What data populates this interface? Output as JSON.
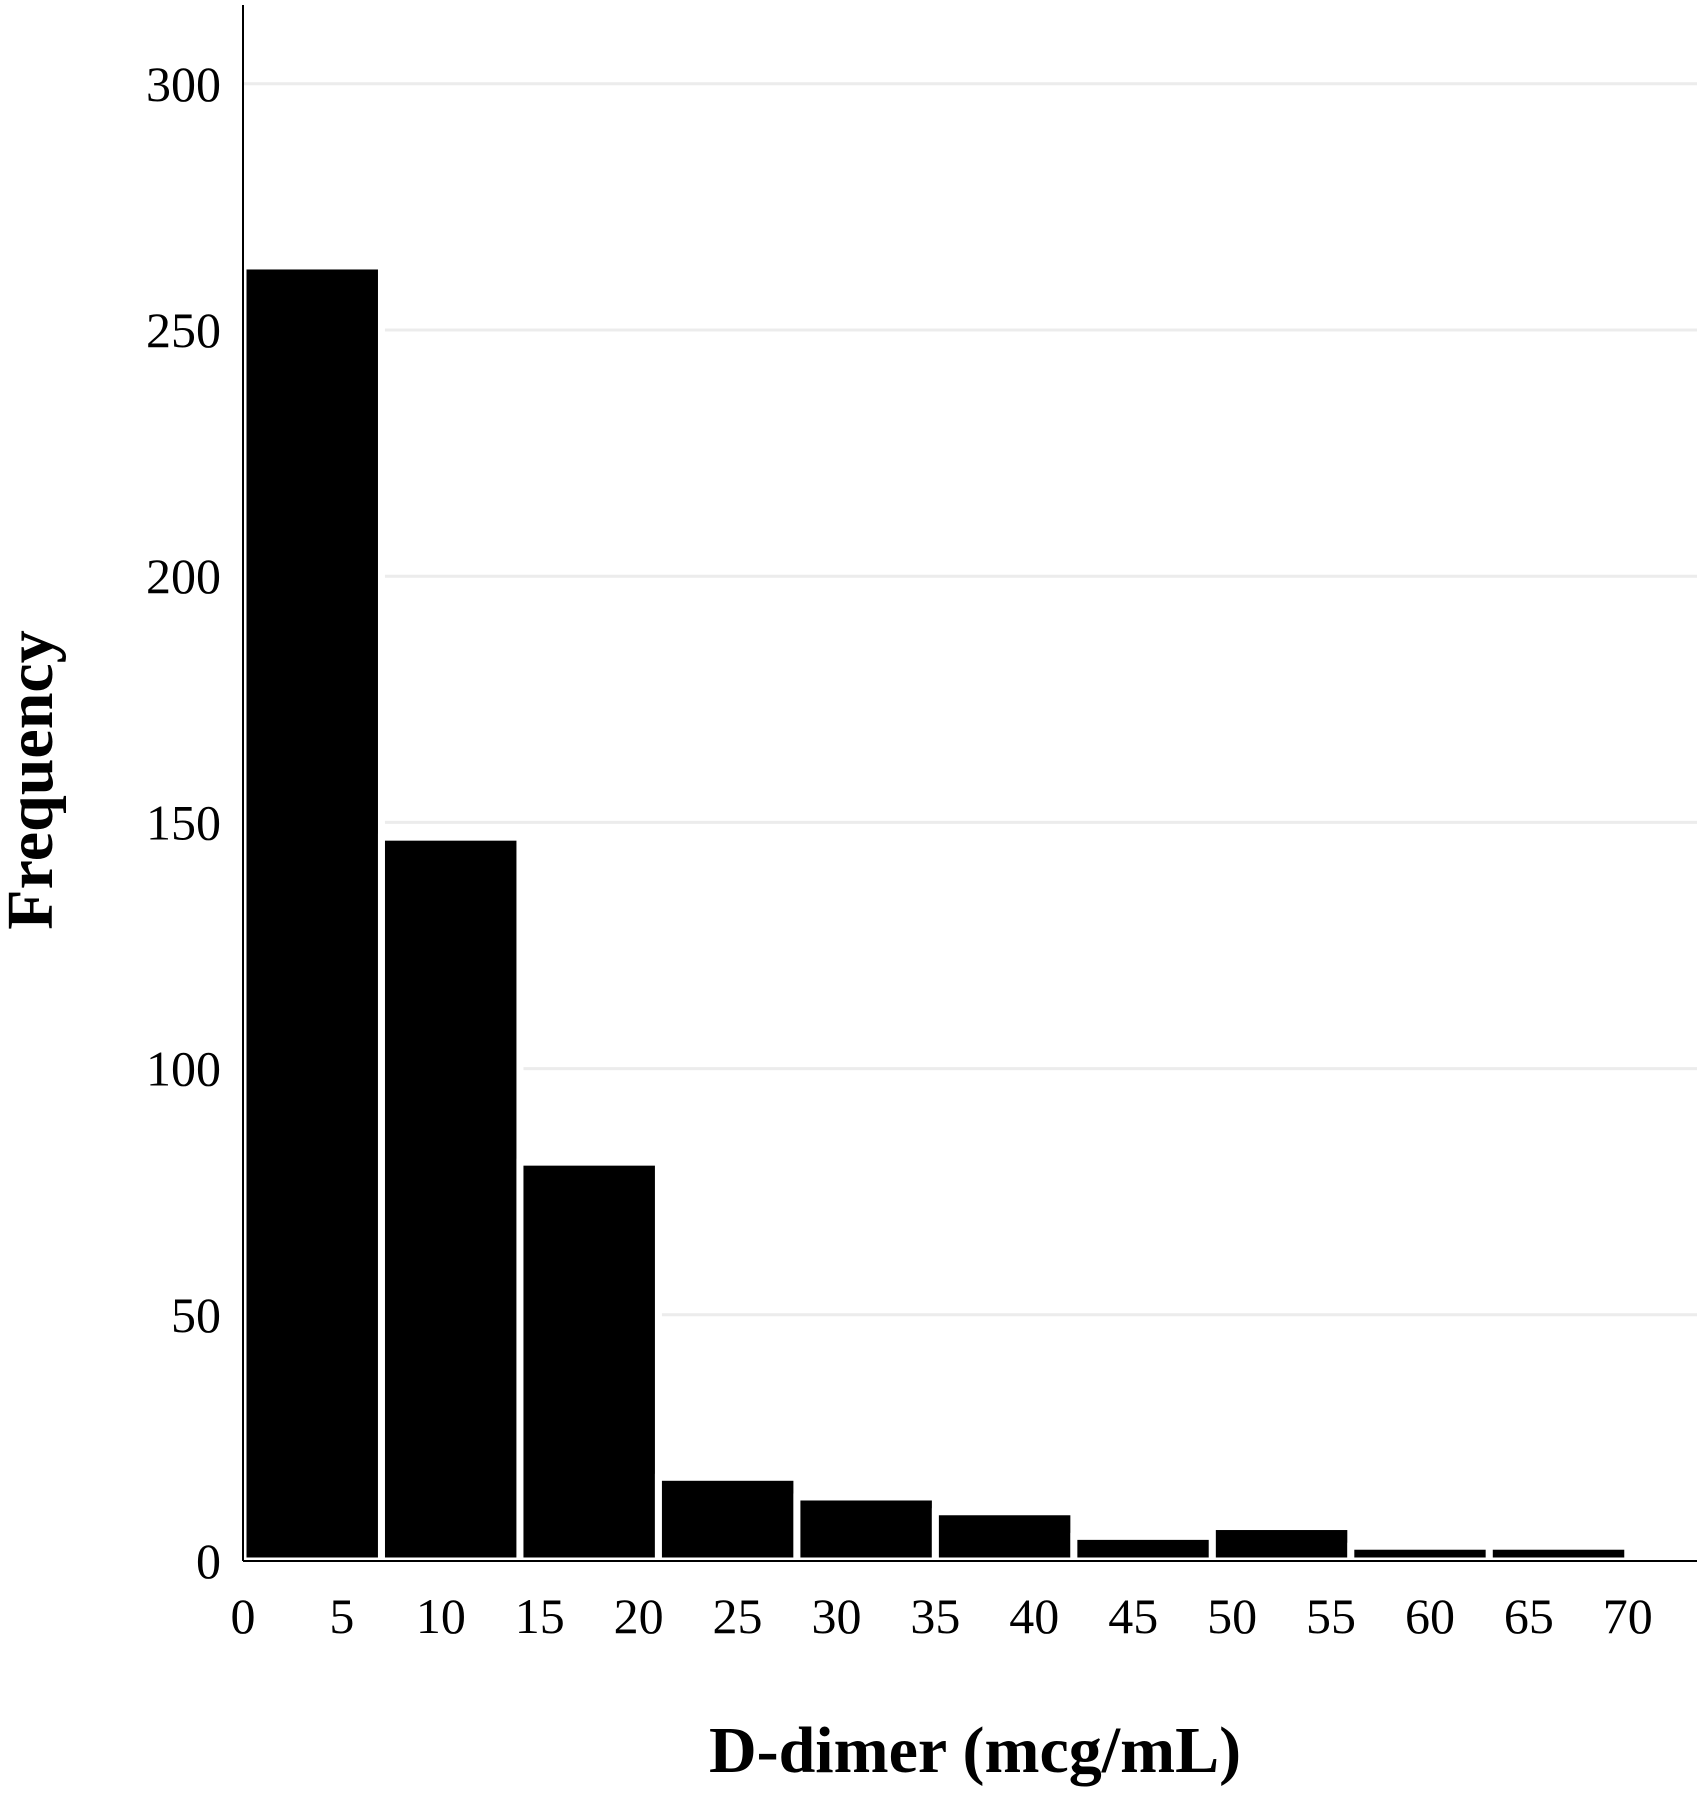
{
  "chart_data": {
    "type": "bar",
    "bins": [
      {
        "x0": 0,
        "x1": 7,
        "count": 263
      },
      {
        "x0": 7,
        "x1": 14,
        "count": 147
      },
      {
        "x0": 14,
        "x1": 21,
        "count": 81
      },
      {
        "x0": 21,
        "x1": 28,
        "count": 17
      },
      {
        "x0": 28,
        "x1": 35,
        "count": 13
      },
      {
        "x0": 35,
        "x1": 42,
        "count": 10
      },
      {
        "x0": 42,
        "x1": 49,
        "count": 5
      },
      {
        "x0": 49,
        "x1": 56,
        "count": 7
      },
      {
        "x0": 56,
        "x1": 63,
        "count": 3
      },
      {
        "x0": 63,
        "x1": 70,
        "count": 3
      }
    ],
    "xlabel": "D-dimer (mcg/mL)",
    "ylabel": "Frequency",
    "xlim": [
      0,
      73.5
    ],
    "ylim": [
      0,
      316
    ],
    "x_ticks": [
      0,
      5,
      10,
      15,
      20,
      25,
      30,
      35,
      40,
      45,
      50,
      55,
      60,
      65,
      70
    ],
    "y_ticks": [
      0,
      50,
      100,
      150,
      200,
      250,
      300
    ],
    "grid": "horizontal",
    "bar_color": "#000000",
    "bar_edge_color": "#ffffff",
    "grid_color": "#ececec"
  }
}
